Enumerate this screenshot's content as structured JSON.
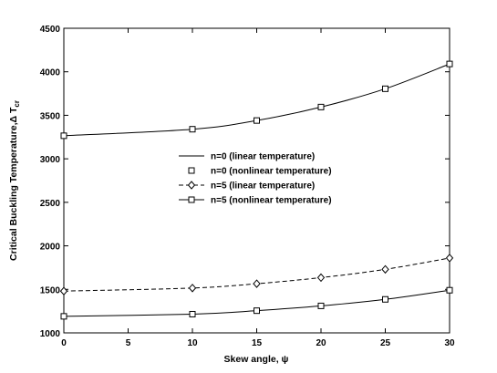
{
  "chart_data": {
    "type": "line",
    "xlabel": "Skew angle, ψ",
    "ylabel": "Critical Buckling Temperature,Δ T",
    "ylabel_sub": "cr",
    "xlim": [
      0,
      30
    ],
    "ylim": [
      1000,
      4500
    ],
    "xticks": [
      0,
      5,
      10,
      15,
      20,
      25,
      30
    ],
    "yticks": [
      1000,
      1500,
      2000,
      2500,
      3000,
      3500,
      4000,
      4500
    ],
    "grid": false,
    "legend_position": "center",
    "x": [
      0,
      10,
      15,
      20,
      25,
      30
    ],
    "series": [
      {
        "name": "n=0 (linear temperature)",
        "style": "solid",
        "marker": "none",
        "values": [
          1190,
          1215,
          1255,
          1310,
          1385,
          1490
        ]
      },
      {
        "name": "n=0 (nonlinear temperature)",
        "style": "none",
        "marker": "square",
        "values": [
          1190,
          1215,
          1255,
          1310,
          1385,
          1490
        ]
      },
      {
        "name": "n=5 (linear temperature)",
        "style": "dashed",
        "marker": "diamond",
        "values": [
          1480,
          1515,
          1565,
          1635,
          1730,
          1860
        ]
      },
      {
        "name": "n=5 (nonlinear temperature)",
        "style": "solid",
        "marker": "square",
        "values": [
          3265,
          3340,
          3440,
          3595,
          3805,
          4090
        ]
      }
    ]
  }
}
